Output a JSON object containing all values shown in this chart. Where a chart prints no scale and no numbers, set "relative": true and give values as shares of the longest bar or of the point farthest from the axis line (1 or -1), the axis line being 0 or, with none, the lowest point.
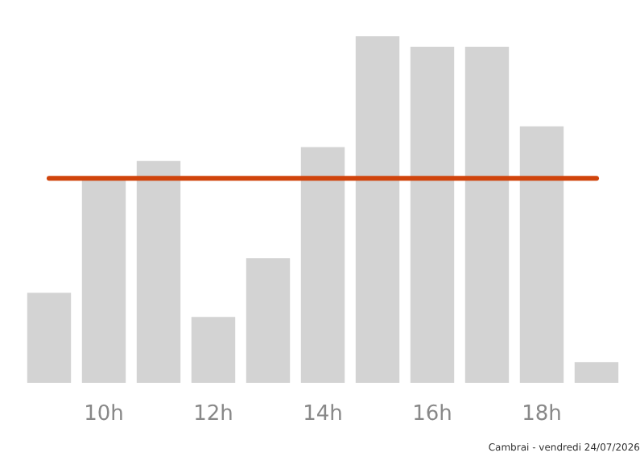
{
  "chart_data": {
    "type": "bar",
    "relative": true,
    "categories": [
      null,
      "10h",
      null,
      "12h",
      null,
      "14h",
      null,
      "16h",
      null,
      "18h",
      null
    ],
    "values": [
      0.26,
      0.59,
      0.64,
      0.19,
      0.36,
      0.68,
      1,
      0.97,
      0.97,
      0.74,
      0.06
    ],
    "color": "#d3d3d3",
    "ref_lines": [
      {
        "axis": "y",
        "value": 0.59,
        "color": "#d0440c"
      }
    ],
    "annotations": [
      "Cambrai - vendredi 24/07/2026"
    ],
    "grid": false
  }
}
